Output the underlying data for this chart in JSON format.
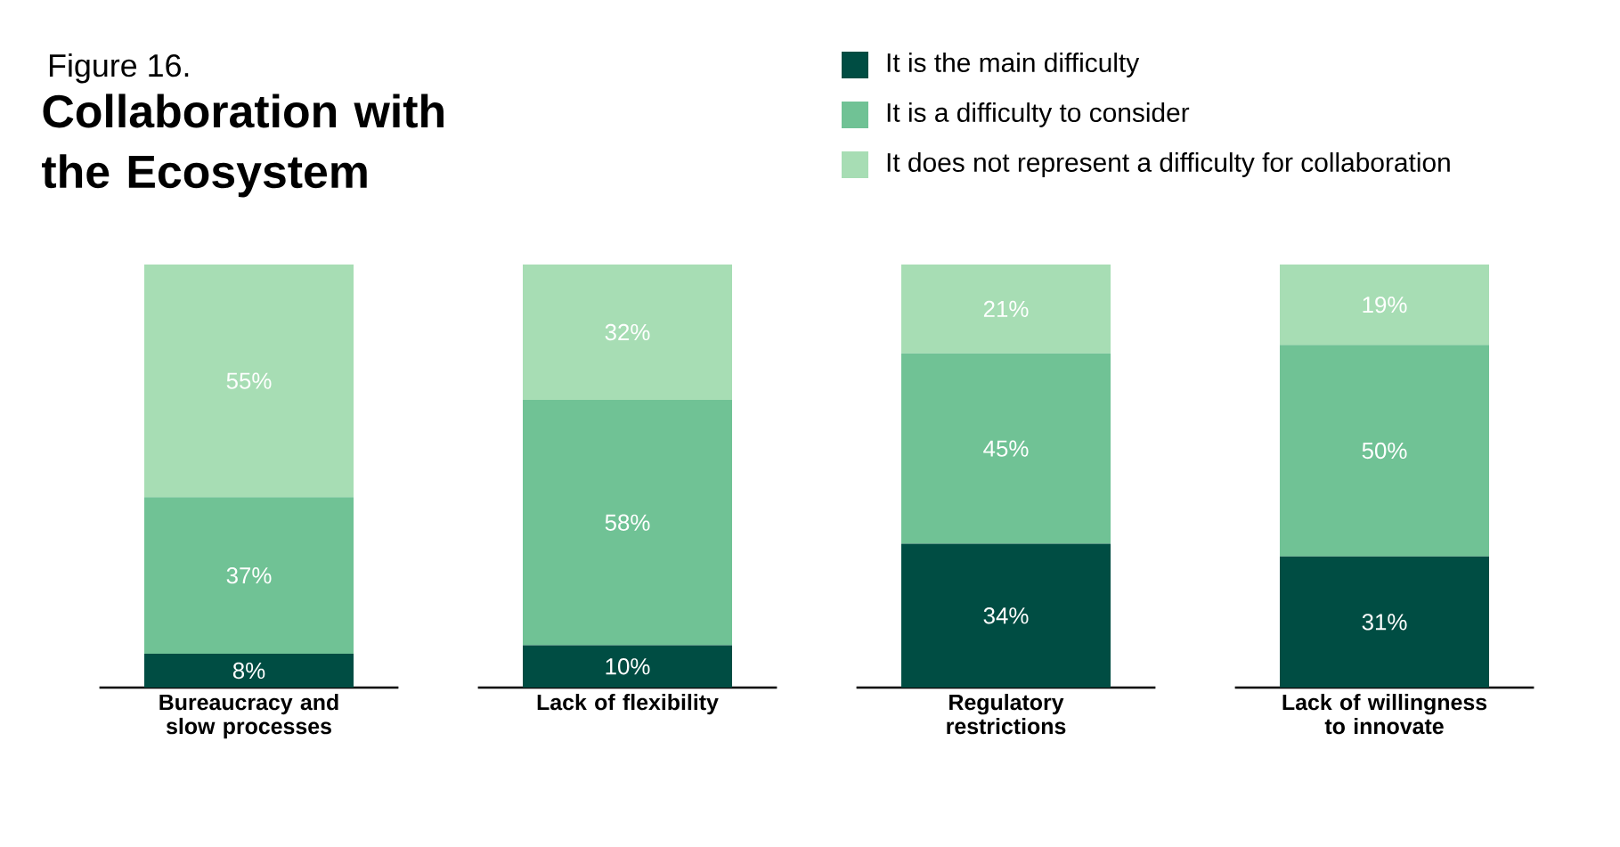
{
  "chart_data": {
    "type": "bar",
    "stacked": true,
    "legend": "top right",
    "title": "Collaboration with the Ecosystem",
    "annotations": [
      "Figure 16."
    ],
    "categories": [
      "Bureaucracy and slow processes",
      "Lack of flexibility",
      "Regulatory restrictions",
      "Lack of willingness to innovate"
    ],
    "series": [
      {
        "name": "It is the main difficulty",
        "color": "#004d43",
        "values": [
          8,
          10,
          34,
          31
        ],
        "value_labels": [
          "8%",
          "10%",
          "34%",
          "31%"
        ]
      },
      {
        "name": "It is a difficulty to consider",
        "color": "#70c295",
        "values": [
          37,
          58,
          45,
          50
        ],
        "value_labels": [
          "37%",
          "58%",
          "45%",
          "50%"
        ]
      },
      {
        "name": "It does not represent a difficulty for collaboration",
        "color": "#a7ddb4",
        "values": [
          55,
          32,
          21,
          19
        ],
        "value_labels": [
          "55%",
          "32%",
          "21%",
          "19%"
        ]
      }
    ]
  }
}
